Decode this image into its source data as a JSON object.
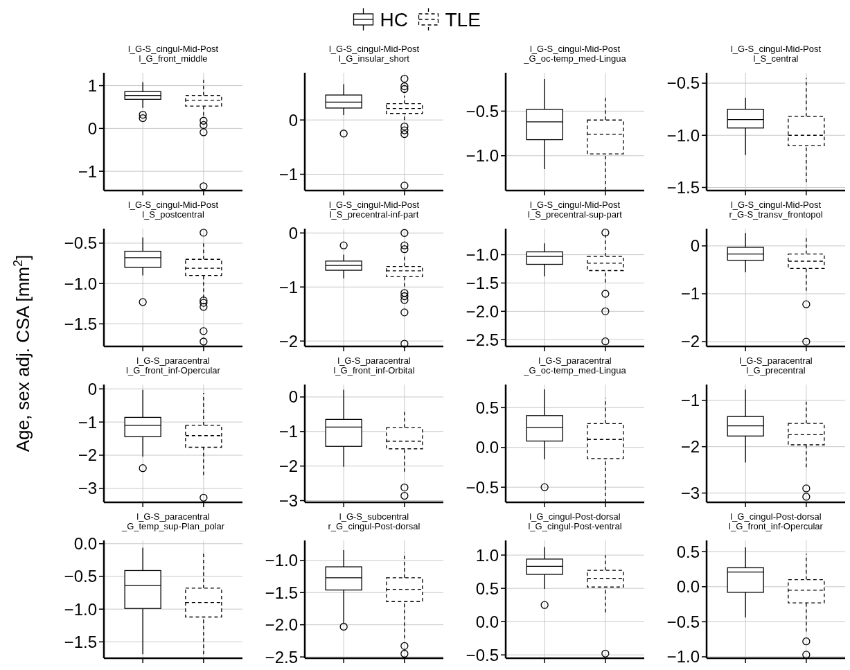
{
  "chart_data": [
    {
      "type": "box",
      "title": "l_G-S_cingul-Mid-Post\nl_G_front_middle",
      "ylabel": "Age, sex adj. CSA [mm$^{2}$]",
      "legend": "top",
      "grid": true,
      "categories": [
        null,
        null
      ],
      "ylim": [
        -1.45,
        1.3
      ],
      "yticks": [
        {
          "value": -1,
          "label": "−1"
        },
        0,
        1
      ],
      "series": [
        {
          "name": "HC",
          "color": "#000000",
          "line_style": "solid",
          "boxes": [
            {
              "low": 0.48,
              "q1": 0.68,
              "median": 0.77,
              "q3": 0.86,
              "high": 1.08,
              "outliers": [
                0.32,
                0.24
              ]
            },
            null
          ]
        },
        {
          "name": "TLE",
          "color": "#000000",
          "line_style": "dashed",
          "boxes": [
            null,
            {
              "low": 0.3,
              "q1": 0.52,
              "median": 0.66,
              "q3": 0.77,
              "high": 1.13,
              "outliers": [
                0.18,
                0.08,
                -0.09,
                -1.35
              ]
            }
          ]
        }
      ]
    },
    {
      "type": "box",
      "title": "l_G-S_cingul-Mid-Post\nl_G_insular_short",
      "grid": true,
      "categories": [
        null,
        null
      ],
      "ylim": [
        -1.3,
        0.87
      ],
      "yticks": [
        {
          "value": -1,
          "label": "−1"
        },
        0
      ],
      "series": [
        {
          "color": "#000000",
          "line_style": "solid",
          "boxes": [
            {
              "low": 0.09,
              "q1": 0.22,
              "median": 0.33,
              "q3": 0.46,
              "high": 0.66,
              "outliers": [
                -0.25
              ]
            },
            null
          ]
        },
        {
          "color": "#000000",
          "line_style": "dashed",
          "boxes": [
            null,
            {
              "low": 0.0,
              "q1": 0.12,
              "median": 0.21,
              "q3": 0.3,
              "high": 0.45,
              "outliers": [
                0.76,
                0.62,
                0.57,
                -0.12,
                -0.19,
                -0.26,
                -1.21
              ]
            }
          ]
        }
      ]
    },
    {
      "type": "box",
      "title": "l_G-S_cingul-Mid-Post\n_G_oc-temp_med-Lingua",
      "grid": true,
      "categories": [
        null,
        null
      ],
      "ylim": [
        -1.39,
        -0.07
      ],
      "yticks": [
        {
          "value": -1,
          "label": "−1.0"
        },
        {
          "value": -0.5,
          "label": "−0.5"
        }
      ],
      "series": [
        {
          "color": "#000000",
          "line_style": "solid",
          "boxes": [
            {
              "low": -1.15,
              "q1": -0.82,
              "median": -0.62,
              "q3": -0.48,
              "high": -0.14
            },
            null
          ]
        },
        {
          "color": "#000000",
          "line_style": "dashed",
          "boxes": [
            null,
            {
              "low": -1.39,
              "q1": -0.98,
              "median": -0.76,
              "q3": -0.6,
              "high": -0.32
            }
          ]
        }
      ]
    },
    {
      "type": "box",
      "title": "l_G-S_cingul-Mid-Post\nl_S_central",
      "grid": true,
      "categories": [
        null,
        null
      ],
      "ylim": [
        -1.53,
        -0.4
      ],
      "yticks": [
        {
          "value": -1.5,
          "label": "−1.5"
        },
        {
          "value": -1,
          "label": "−1.0"
        },
        {
          "value": -0.5,
          "label": "−0.5"
        }
      ],
      "series": [
        {
          "color": "#000000",
          "line_style": "solid",
          "boxes": [
            {
              "low": -1.19,
              "q1": -0.93,
              "median": -0.85,
              "q3": -0.75,
              "high": -0.64
            },
            null
          ]
        },
        {
          "color": "#000000",
          "line_style": "dashed",
          "boxes": [
            null,
            {
              "low": -1.45,
              "q1": -1.1,
              "median": -1.0,
              "q3": -0.82,
              "high": -0.45
            }
          ]
        }
      ]
    },
    {
      "type": "box",
      "title": "l_G-S_cingul-Mid-Post\nl_S_postcentral",
      "grid": true,
      "categories": [
        null,
        null
      ],
      "ylim": [
        -1.78,
        -0.32
      ],
      "yticks": [
        {
          "value": -1.5,
          "label": "−1.5"
        },
        {
          "value": -1,
          "label": "−1.0"
        },
        {
          "value": -0.5,
          "label": "−0.5"
        }
      ],
      "series": [
        {
          "color": "#000000",
          "line_style": "solid",
          "boxes": [
            {
              "low": -0.9,
              "q1": -0.8,
              "median": -0.68,
              "q3": -0.6,
              "high": -0.43,
              "outliers": [
                -1.23
              ]
            },
            null
          ]
        },
        {
          "color": "#000000",
          "line_style": "dashed",
          "boxes": [
            null,
            {
              "low": -1.18,
              "q1": -0.9,
              "median": -0.81,
              "q3": -0.7,
              "high": -0.47,
              "outliers": [
                -0.37,
                -1.21,
                -1.24,
                -1.29,
                -1.59,
                -1.72
              ]
            }
          ]
        }
      ]
    },
    {
      "type": "box",
      "title": "l_G-S_cingul-Mid-Post\nl_S_precentral-inf-part",
      "grid": true,
      "categories": [
        null,
        null
      ],
      "ylim": [
        -2.1,
        0.08
      ],
      "yticks": [
        {
          "value": -2,
          "label": "−2"
        },
        {
          "value": -1,
          "label": "−1"
        },
        0
      ],
      "series": [
        {
          "color": "#000000",
          "line_style": "solid",
          "boxes": [
            {
              "low": -0.84,
              "q1": -0.69,
              "median": -0.6,
              "q3": -0.52,
              "high": -0.4,
              "outliers": [
                -0.23
              ]
            },
            null
          ]
        },
        {
          "color": "#000000",
          "line_style": "dashed",
          "boxes": [
            null,
            {
              "low": -0.99,
              "q1": -0.81,
              "median": -0.7,
              "q3": -0.62,
              "high": -0.4,
              "outliers": [
                0.0,
                -0.23,
                -0.3,
                -1.11,
                -1.17,
                -1.24,
                -1.47,
                -2.05
              ]
            }
          ]
        }
      ]
    },
    {
      "type": "box",
      "title": "l_G-S_cingul-Mid-Post\nl_S_precentral-sup-part",
      "grid": true,
      "categories": [
        null,
        null
      ],
      "ylim": [
        -2.62,
        -0.54
      ],
      "yticks": [
        {
          "value": -2.5,
          "label": "−2.5"
        },
        {
          "value": -2,
          "label": "−2.0"
        },
        {
          "value": -1.5,
          "label": "−1.5"
        },
        {
          "value": -1,
          "label": "−1.0"
        }
      ],
      "series": [
        {
          "color": "#000000",
          "line_style": "solid",
          "boxes": [
            {
              "low": -1.38,
              "q1": -1.17,
              "median": -1.03,
              "q3": -0.95,
              "high": -0.8
            },
            null
          ]
        },
        {
          "color": "#000000",
          "line_style": "dashed",
          "boxes": [
            null,
            {
              "low": -1.49,
              "q1": -1.28,
              "median": -1.15,
              "q3": -1.03,
              "high": -0.65,
              "outliers": [
                -0.61,
                -1.69,
                -2.0,
                -2.53
              ]
            }
          ]
        }
      ]
    },
    {
      "type": "box",
      "title": "l_G-S_cingul-Mid-Post\nr_G-S_transv_frontopol",
      "grid": true,
      "categories": [
        null,
        null
      ],
      "ylim": [
        -2.1,
        0.36
      ],
      "yticks": [
        {
          "value": -2,
          "label": "−2"
        },
        {
          "value": -1,
          "label": "−1"
        },
        0
      ],
      "series": [
        {
          "color": "#000000",
          "line_style": "solid",
          "boxes": [
            {
              "low": -0.55,
              "q1": -0.3,
              "median": -0.17,
              "q3": -0.03,
              "high": 0.27
            },
            null
          ]
        },
        {
          "color": "#000000",
          "line_style": "dashed",
          "boxes": [
            null,
            {
              "low": -0.94,
              "q1": -0.47,
              "median": -0.32,
              "q3": -0.17,
              "high": 0.17,
              "outliers": [
                -1.22,
                -2.0
              ]
            }
          ]
        }
      ]
    },
    {
      "type": "box",
      "title": "l_G-S_paracentral\nl_G_front_inf-Opercular",
      "grid": true,
      "categories": [
        null,
        null
      ],
      "ylim": [
        -3.42,
        0.13
      ],
      "yticks": [
        {
          "value": -3,
          "label": "−3"
        },
        {
          "value": -2,
          "label": "−2"
        },
        {
          "value": -1,
          "label": "−1"
        },
        0
      ],
      "series": [
        {
          "color": "#000000",
          "line_style": "solid",
          "boxes": [
            {
              "low": -2.04,
              "q1": -1.44,
              "median": -1.1,
              "q3": -0.86,
              "high": -0.03,
              "outliers": [
                -2.39
              ]
            },
            null
          ]
        },
        {
          "color": "#000000",
          "line_style": "dashed",
          "boxes": [
            null,
            {
              "low": -2.6,
              "q1": -1.76,
              "median": -1.41,
              "q3": -1.1,
              "high": -0.12,
              "outliers": [
                -3.28
              ]
            }
          ]
        }
      ]
    },
    {
      "type": "box",
      "title": "l_G-S_paracentral\nl_G_front_inf-Orbital",
      "grid": true,
      "categories": [
        null,
        null
      ],
      "ylim": [
        -3.05,
        0.36
      ],
      "yticks": [
        {
          "value": -3,
          "label": "−3"
        },
        {
          "value": -2,
          "label": "−2"
        },
        {
          "value": -1,
          "label": "−1"
        },
        0
      ],
      "series": [
        {
          "color": "#000000",
          "line_style": "solid",
          "boxes": [
            {
              "low": -2.02,
              "q1": -1.43,
              "median": -0.87,
              "q3": -0.65,
              "high": 0.21
            },
            null
          ]
        },
        {
          "color": "#000000",
          "line_style": "dashed",
          "boxes": [
            null,
            {
              "low": -2.16,
              "q1": -1.5,
              "median": -1.28,
              "q3": -0.89,
              "high": -0.43,
              "outliers": [
                -2.62,
                -2.86
              ]
            }
          ]
        }
      ]
    },
    {
      "type": "box",
      "title": "l_G-S_paracentral\n_G_oc-temp_med-Lingua",
      "grid": true,
      "categories": [
        null,
        null
      ],
      "ylim": [
        -0.69,
        0.79
      ],
      "yticks": [
        {
          "value": -0.5,
          "label": "−0.5"
        },
        {
          "value": 0,
          "label": "0.0"
        },
        0.5
      ],
      "series": [
        {
          "color": "#000000",
          "line_style": "solid",
          "boxes": [
            {
              "low": -0.15,
              "q1": 0.08,
              "median": 0.25,
              "q3": 0.4,
              "high": 0.73,
              "outliers": [
                -0.5
              ]
            },
            null
          ]
        },
        {
          "color": "#000000",
          "line_style": "dashed",
          "boxes": [
            null,
            {
              "low": -0.69,
              "q1": -0.14,
              "median": 0.1,
              "q3": 0.3,
              "high": 0.62
            }
          ]
        }
      ]
    },
    {
      "type": "box",
      "title": "l_G-S_paracentral\nl_G_precentral",
      "grid": true,
      "categories": [
        null,
        null
      ],
      "ylim": [
        -3.2,
        -0.66
      ],
      "yticks": [
        {
          "value": -3,
          "label": "−3"
        },
        {
          "value": -2,
          "label": "−2"
        },
        {
          "value": -1,
          "label": "−1"
        }
      ],
      "series": [
        {
          "color": "#000000",
          "line_style": "solid",
          "boxes": [
            {
              "low": -2.34,
              "q1": -1.77,
              "median": -1.55,
              "q3": -1.35,
              "high": -0.77
            },
            null
          ]
        },
        {
          "color": "#000000",
          "line_style": "dashed",
          "boxes": [
            null,
            {
              "low": -2.44,
              "q1": -1.96,
              "median": -1.74,
              "q3": -1.5,
              "high": -1.03,
              "outliers": [
                -2.9,
                -3.08
              ]
            }
          ]
        }
      ]
    },
    {
      "type": "box",
      "title": "l_G-S_paracentral\n_G_temp_sup-Plan_polar",
      "grid": true,
      "categories": [
        null,
        null
      ],
      "ylim": [
        -1.75,
        0.05
      ],
      "yticks": [
        {
          "value": -1.5,
          "label": "−1.5"
        },
        {
          "value": -1,
          "label": "−1.0"
        },
        {
          "value": -0.5,
          "label": "−0.5"
        },
        {
          "value": 0,
          "label": "0.0"
        }
      ],
      "series": [
        {
          "color": "#000000",
          "line_style": "solid",
          "boxes": [
            {
              "low": -1.69,
              "q1": -0.99,
              "median": -0.64,
              "q3": -0.41,
              "high": -0.06
            },
            null
          ]
        },
        {
          "color": "#000000",
          "line_style": "dashed",
          "boxes": [
            null,
            {
              "low": -1.69,
              "q1": -1.12,
              "median": -0.9,
              "q3": -0.68,
              "high": -0.14
            }
          ]
        }
      ]
    },
    {
      "type": "box",
      "title": "l_G-S_subcentral\nr_G_cingul-Post-dorsal",
      "grid": true,
      "categories": [
        null,
        null
      ],
      "ylim": [
        -2.52,
        -0.69
      ],
      "yticks": [
        {
          "value": -2.5,
          "label": "−2.5"
        },
        {
          "value": -2,
          "label": "−2.0"
        },
        {
          "value": -1.5,
          "label": "−1.5"
        },
        {
          "value": -1,
          "label": "−1.0"
        }
      ],
      "series": [
        {
          "color": "#000000",
          "line_style": "solid",
          "boxes": [
            {
              "low": -1.97,
              "q1": -1.46,
              "median": -1.27,
              "q3": -1.1,
              "high": -0.84,
              "outliers": [
                -2.03
              ]
            },
            null
          ]
        },
        {
          "color": "#000000",
          "line_style": "dashed",
          "boxes": [
            null,
            {
              "low": -2.21,
              "q1": -1.64,
              "median": -1.45,
              "q3": -1.27,
              "high": -0.88,
              "outliers": [
                -2.33,
                -2.45
              ]
            }
          ]
        }
      ]
    },
    {
      "type": "box",
      "title": "l_G_cingul-Post-dorsal\nl_G_cingul-Post-ventral",
      "grid": true,
      "categories": [
        null,
        null
      ],
      "ylim": [
        -0.55,
        1.22
      ],
      "yticks": [
        {
          "value": -0.5,
          "label": "−0.5"
        },
        {
          "value": 0,
          "label": "0.0"
        },
        0.5,
        {
          "value": 1,
          "label": "1.0"
        }
      ],
      "series": [
        {
          "color": "#000000",
          "line_style": "solid",
          "boxes": [
            {
              "low": 0.49,
              "q1": 0.71,
              "median": 0.83,
              "q3": 0.94,
              "high": 1.12,
              "outliers": [
                0.25
              ]
            },
            null
          ]
        },
        {
          "color": "#000000",
          "line_style": "dashed",
          "boxes": [
            null,
            {
              "low": 0.14,
              "q1": 0.52,
              "median": 0.65,
              "q3": 0.77,
              "high": 1.0,
              "outliers": [
                -0.48
              ]
            }
          ]
        }
      ]
    },
    {
      "type": "box",
      "title": "l_G_cingul-Post-dorsal\nl_G_front_inf-Opercular",
      "grid": true,
      "categories": [
        null,
        null
      ],
      "ylim": [
        -1.02,
        0.66
      ],
      "yticks": [
        {
          "value": -1,
          "label": "−1.0"
        },
        {
          "value": -0.5,
          "label": "−0.5"
        },
        {
          "value": 0,
          "label": "0.0"
        },
        0.5
      ],
      "series": [
        {
          "color": "#000000",
          "line_style": "solid",
          "boxes": [
            {
              "low": -0.44,
              "q1": -0.08,
              "median": 0.21,
              "q3": 0.27,
              "high": 0.56
            },
            null
          ]
        },
        {
          "color": "#000000",
          "line_style": "dashed",
          "boxes": [
            null,
            {
              "low": -0.64,
              "q1": -0.23,
              "median": -0.05,
              "q3": 0.1,
              "high": 0.47,
              "outliers": [
                -0.78,
                -0.97
              ]
            }
          ]
        }
      ]
    }
  ]
}
